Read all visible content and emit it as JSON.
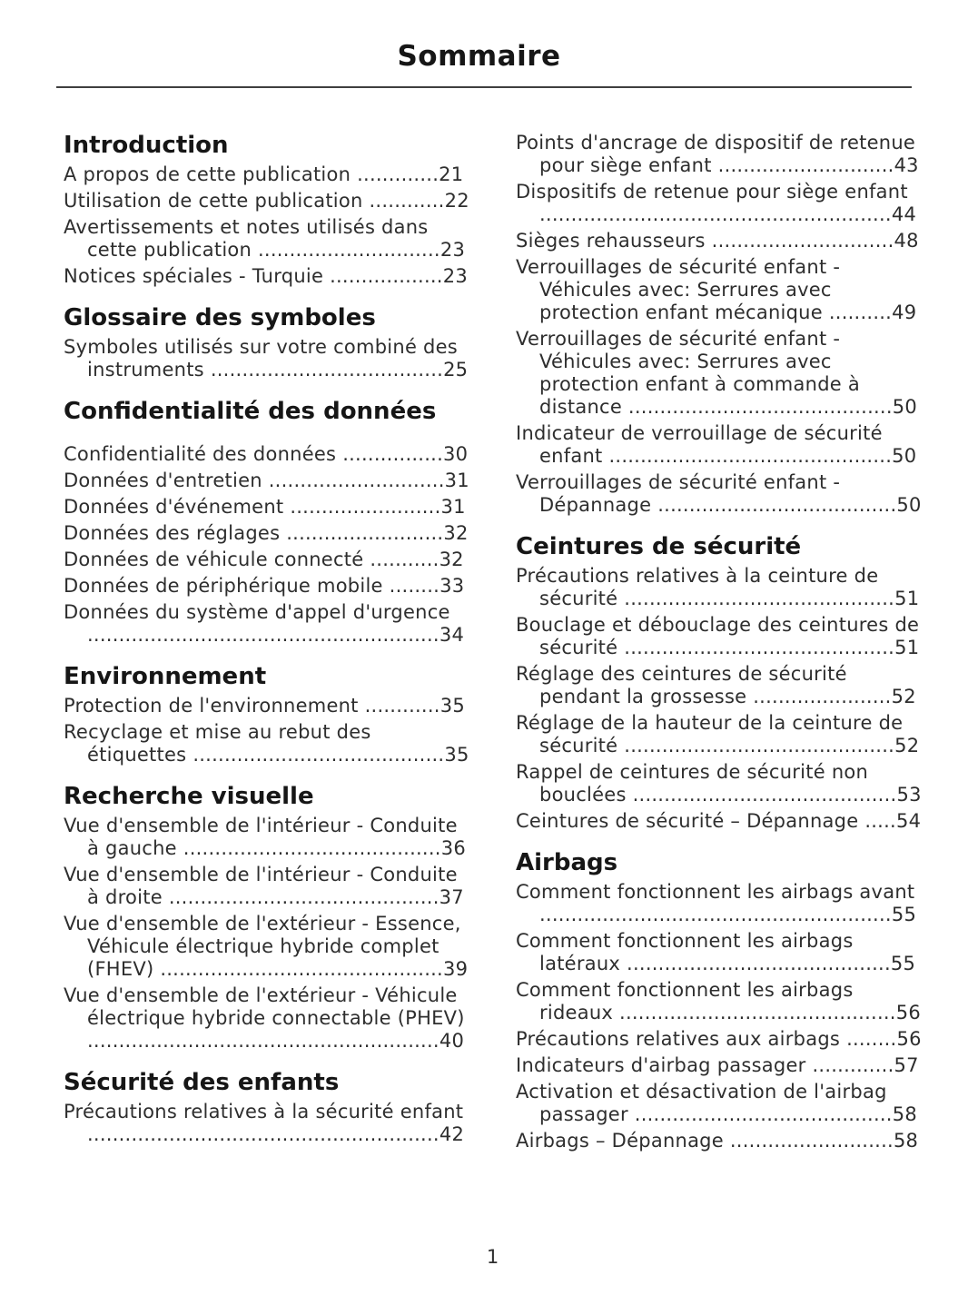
{
  "title": "Sommaire",
  "page_number": "1",
  "columns": [
    {
      "sections": [
        {
          "heading": "Introduction",
          "entries": [
            {
              "label": "A propos de cette publication",
              "page": "21"
            },
            {
              "label": "Utilisation de cette publication",
              "page": "22"
            },
            {
              "label": "Avertissements et notes utilisés dans cette publication",
              "page": "23"
            },
            {
              "label": "Notices spéciales - Turquie",
              "page": "23"
            }
          ]
        },
        {
          "heading": "Glossaire des symboles",
          "entries": [
            {
              "label": "Symboles utilisés sur votre combiné des instruments",
              "page": "25"
            }
          ]
        },
        {
          "heading": "Confidentialité des données",
          "gap_after_heading": true,
          "entries": [
            {
              "label": "Confidentialité des données",
              "page": "30"
            },
            {
              "label": "Données d'entretien",
              "page": "31"
            },
            {
              "label": "Données d'événement",
              "page": "31"
            },
            {
              "label": "Données des réglages",
              "page": "32"
            },
            {
              "label": "Données de véhicule connecté",
              "page": "32"
            },
            {
              "label": "Données de périphérique mobile",
              "page": "33"
            },
            {
              "label": "Données du système d'appel d'urgence",
              "page": "34"
            }
          ]
        },
        {
          "heading": "Environnement",
          "entries": [
            {
              "label": "Protection de l'environnement",
              "page": "35"
            },
            {
              "label": "Recyclage et mise au rebut des étiquettes",
              "page": "35"
            }
          ]
        },
        {
          "heading": "Recherche visuelle",
          "entries": [
            {
              "label": "Vue d'ensemble de l'intérieur - Conduite à gauche",
              "page": "36"
            },
            {
              "label": "Vue d'ensemble de l'intérieur - Conduite à droite",
              "page": "37"
            },
            {
              "label": "Vue d'ensemble de l'extérieur - Essence, Véhicule électrique hybride complet (FHEV)",
              "page": "39"
            },
            {
              "label": "Vue d'ensemble de l'extérieur - Véhicule électrique hybride connectable (PHEV)",
              "page": "40"
            }
          ]
        },
        {
          "heading": "Sécurité des enfants",
          "entries": [
            {
              "label": "Précautions relatives à la sécurité enfant",
              "page": "42"
            }
          ]
        }
      ]
    },
    {
      "sections": [
        {
          "heading": null,
          "entries": [
            {
              "label": "Points d'ancrage de dispositif de retenue pour siège enfant",
              "page": "43"
            },
            {
              "label": "Dispositifs de retenue pour siège enfant",
              "page": "44"
            },
            {
              "label": "Sièges rehausseurs",
              "page": "48"
            },
            {
              "label": "Verrouillages de sécurité enfant - Véhicules avec: Serrures avec protection enfant mécanique",
              "page": "49"
            },
            {
              "label": "Verrouillages de sécurité enfant - Véhicules avec: Serrures avec protection enfant à commande à distance",
              "page": "50"
            },
            {
              "label": "Indicateur de verrouillage de sécurité enfant",
              "page": "50"
            },
            {
              "label": "Verrouillages de sécurité enfant - Dépannage",
              "page": "50"
            }
          ]
        },
        {
          "heading": "Ceintures de sécurité",
          "entries": [
            {
              "label": "Précautions relatives à la ceinture de sécurité",
              "page": "51"
            },
            {
              "label": "Bouclage et débouclage des ceintures de sécurité",
              "page": "51"
            },
            {
              "label": "Réglage des ceintures de sécurité pendant la grossesse",
              "page": "52"
            },
            {
              "label": "Réglage de la hauteur de la ceinture de sécurité",
              "page": "52"
            },
            {
              "label": "Rappel de ceintures de sécurité non bouclées",
              "page": "53"
            },
            {
              "label": "Ceintures de sécurité – Dépannage",
              "page": "54"
            }
          ]
        },
        {
          "heading": "Airbags",
          "entries": [
            {
              "label": "Comment fonctionnent les airbags avant",
              "page": "55"
            },
            {
              "label": "Comment fonctionnent les airbags latéraux",
              "page": "55"
            },
            {
              "label": "Comment fonctionnent les airbags rideaux",
              "page": "56"
            },
            {
              "label": "Précautions relatives aux airbags",
              "page": "56"
            },
            {
              "label": "Indicateurs d'airbag passager",
              "page": "57"
            },
            {
              "label": "Activation et désactivation de l'airbag passager",
              "page": "58"
            },
            {
              "label": "Airbags – Dépannage",
              "page": "58"
            }
          ]
        }
      ]
    }
  ]
}
